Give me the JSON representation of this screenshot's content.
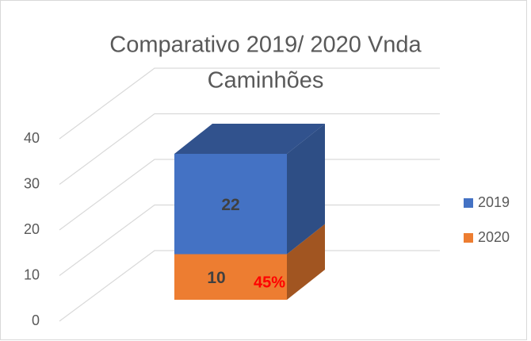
{
  "chart_data": {
    "type": "bar",
    "stacked": true,
    "three_d": true,
    "title": "Comparativo 2019/ 2020 Vnda Caminhões",
    "categories": [
      null
    ],
    "series": [
      {
        "name": "2019",
        "color": "#4472c4",
        "values": [
          22
        ]
      },
      {
        "name": "2020",
        "color": "#ed7d31",
        "values": [
          10
        ]
      }
    ],
    "annotations": [
      {
        "text": "45%",
        "color": "#ff0000"
      }
    ],
    "ylim": [
      0,
      40
    ],
    "yticks": [
      0,
      10,
      20,
      30,
      40
    ],
    "grid": true,
    "legend": "right"
  }
}
